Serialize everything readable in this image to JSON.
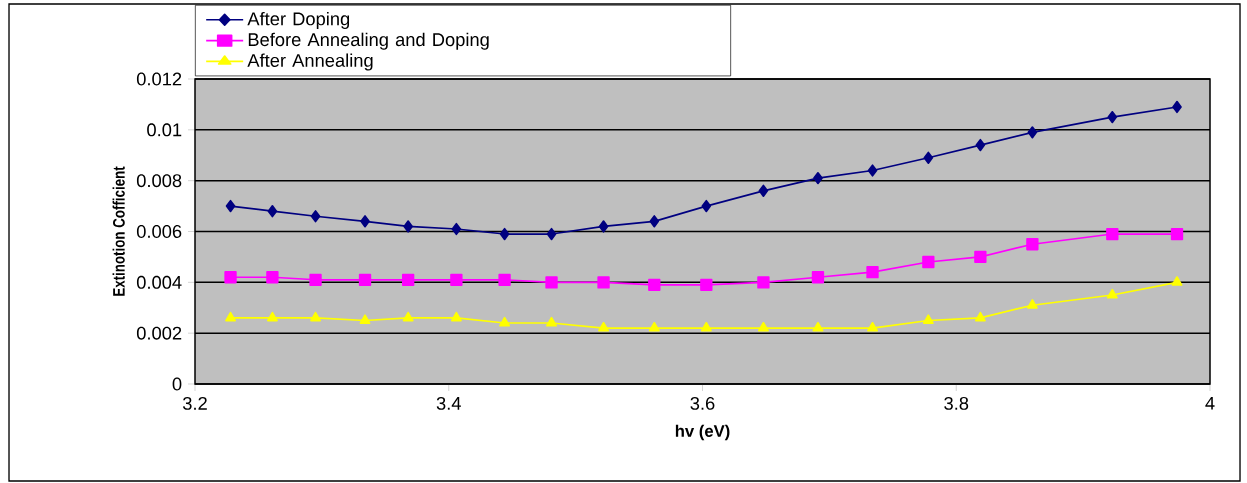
{
  "chart_data": {
    "type": "line",
    "xlabel": "hv (eV)",
    "ylabel": "Extinotion Cofficient",
    "x": [
      3.228,
      3.261,
      3.295,
      3.334,
      3.368,
      3.406,
      3.444,
      3.481,
      3.522,
      3.562,
      3.603,
      3.648,
      3.691,
      3.734,
      3.778,
      3.819,
      3.86,
      3.923,
      3.974
    ],
    "series": [
      {
        "name": "After Doping",
        "color": "#000080",
        "marker": "diamond",
        "values": [
          0.007,
          0.0068,
          0.0066,
          0.0064,
          0.0062,
          0.0061,
          0.0059,
          0.0059,
          0.0062,
          0.0064,
          0.007,
          0.0076,
          0.0081,
          0.0084,
          0.0089,
          0.0094,
          0.0099,
          0.0105,
          0.0109
        ]
      },
      {
        "name": "Before Annealing and Doping",
        "color": "#ff00ff",
        "marker": "square",
        "values": [
          0.0042,
          0.0042,
          0.0041,
          0.0041,
          0.0041,
          0.0041,
          0.0041,
          0.004,
          0.004,
          0.0039,
          0.0039,
          0.004,
          0.0042,
          0.0044,
          0.0048,
          0.005,
          0.0055,
          0.0059,
          0.0059
        ]
      },
      {
        "name": "After Annealing",
        "color": "#ffff00",
        "marker": "triangle",
        "values": [
          0.0026,
          0.0026,
          0.0026,
          0.0025,
          0.0026,
          0.0026,
          0.0024,
          0.0024,
          0.0022,
          0.0022,
          0.0022,
          0.0022,
          0.0022,
          0.0022,
          0.0025,
          0.0026,
          0.0031,
          0.0035,
          0.004
        ]
      }
    ],
    "xlim": [
      3.2,
      4
    ],
    "ylim": [
      0,
      0.012
    ],
    "xticks": [
      3.2,
      3.4,
      3.6,
      3.8,
      4
    ],
    "yticks": [
      0,
      0.002,
      0.004,
      0.006,
      0.008,
      0.01,
      0.012
    ],
    "grid": "y",
    "legend": "top left",
    "line_style": "solid"
  }
}
